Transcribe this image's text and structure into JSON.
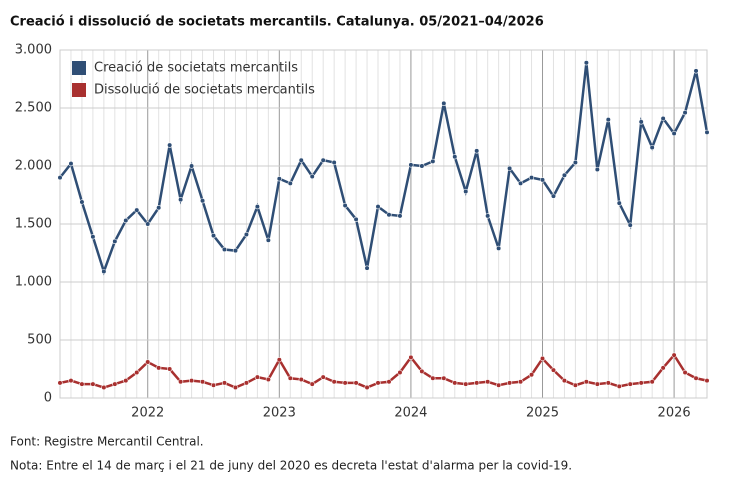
{
  "chart_data": {
    "type": "line",
    "title": "Creació i dissolució de societats mercantils. Catalunya. 05/2021–04/2026",
    "categories": [
      null,
      null,
      null,
      null,
      null,
      null,
      null,
      null,
      "2022",
      null,
      null,
      null,
      null,
      null,
      null,
      null,
      null,
      null,
      null,
      null,
      "2023",
      null,
      null,
      null,
      null,
      null,
      null,
      null,
      null,
      null,
      null,
      null,
      "2024",
      null,
      null,
      null,
      null,
      null,
      null,
      null,
      null,
      null,
      null,
      null,
      "2025",
      null,
      null,
      null,
      null,
      null,
      null,
      null,
      null,
      null,
      null,
      null,
      "2026",
      null,
      null,
      null
    ],
    "series": [
      {
        "name": "Creació de societats mercantils",
        "color": "#2f4e75",
        "values": [
          1900,
          2020,
          1690,
          1390,
          1090,
          1350,
          1530,
          1620,
          1500,
          1640,
          2180,
          1710,
          2000,
          1700,
          1400,
          1280,
          1270,
          1410,
          1650,
          1360,
          1890,
          1850,
          2050,
          1910,
          2050,
          2030,
          1660,
          1540,
          1120,
          1650,
          1580,
          1570,
          2010,
          2000,
          2040,
          2540,
          2080,
          1780,
          2130,
          1570,
          1290,
          1980,
          1850,
          1900,
          1880,
          1740,
          1920,
          2030,
          2890,
          1970,
          2400,
          1680,
          1490,
          2380,
          2160,
          2410,
          2280,
          2460,
          2820,
          2290
        ]
      },
      {
        "name": "Dissolució de societats mercantils",
        "color": "#a8302f",
        "values": [
          130,
          150,
          120,
          120,
          90,
          120,
          150,
          220,
          310,
          260,
          250,
          140,
          150,
          140,
          110,
          130,
          90,
          130,
          180,
          160,
          330,
          170,
          160,
          120,
          180,
          140,
          130,
          130,
          90,
          130,
          140,
          220,
          350,
          230,
          170,
          170,
          130,
          120,
          130,
          140,
          110,
          130,
          140,
          200,
          340,
          240,
          150,
          110,
          140,
          120,
          130,
          100,
          120,
          130,
          140,
          260,
          370,
          220,
          170,
          150
        ]
      }
    ],
    "ylim": [
      0,
      3000
    ],
    "yticks": [
      0,
      500,
      {
        "value": 1000,
        "label": "1.000"
      },
      {
        "value": 1500,
        "label": "1.500"
      },
      {
        "value": 2000,
        "label": "2.000"
      },
      {
        "value": 2500,
        "label": "2.500"
      },
      {
        "value": 3000,
        "label": "3.000"
      }
    ],
    "grid": true,
    "legend": "top-left",
    "notes": [
      "Font: Registre Mercantil Central.",
      "Nota: Entre el 14 de març i el 21 de juny del 2020 es decreta l'estat d'alarma per la covid-19."
    ]
  }
}
